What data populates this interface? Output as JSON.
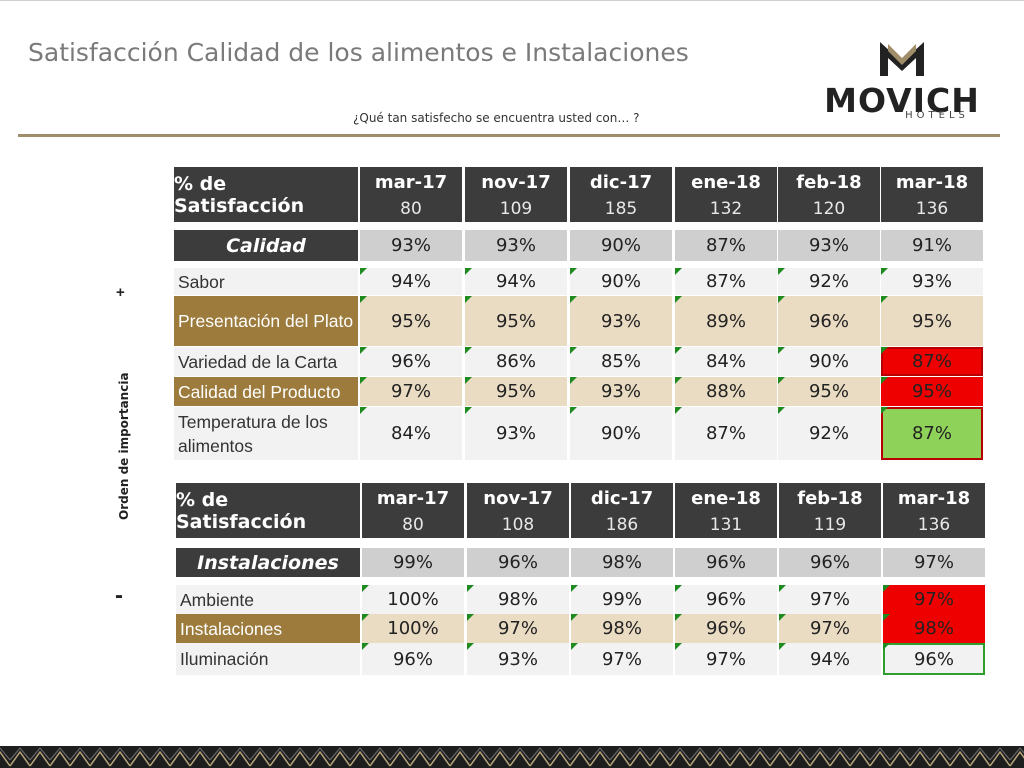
{
  "title": "Satisfacción Calidad de los alimentos e Instalaciones",
  "subtitle": "¿Qué tan satisfecho se encuentra usted con… ?",
  "logo": {
    "word": "MOVICH",
    "sub": "HOTELS"
  },
  "side": {
    "plus": "+",
    "minus": "-",
    "label": "Orden de importancia"
  },
  "colors": {
    "gold_rule": "#a08e6a",
    "header_dark": "#3c3c3c",
    "tan": "#eadbc3",
    "brown": "#9c7b3c",
    "alert_red": "#ee0000",
    "good_green": "#8fd25a",
    "flag_green": "#1f8a1f"
  },
  "table1": {
    "header_label": "% de Satisfacción",
    "columns": [
      {
        "month": "mar-17",
        "n": "80"
      },
      {
        "month": "nov-17",
        "n": "109"
      },
      {
        "month": "dic-17",
        "n": "185"
      },
      {
        "month": "ene-18",
        "n": "132"
      },
      {
        "month": "feb-18",
        "n": "120"
      },
      {
        "month": "mar-18",
        "n": "136"
      }
    ],
    "category": {
      "label": "Calidad",
      "values": [
        "93%",
        "93%",
        "90%",
        "87%",
        "93%",
        "91%"
      ]
    },
    "rows": [
      {
        "label": "Sabor",
        "values": [
          "94%",
          "94%",
          "90%",
          "87%",
          "92%",
          "93%"
        ]
      },
      {
        "label": "Presentación del Plato",
        "values": [
          "95%",
          "95%",
          "93%",
          "89%",
          "96%",
          "95%"
        ]
      },
      {
        "label": "Variedad de la Carta",
        "values": [
          "96%",
          "86%",
          "85%",
          "84%",
          "90%",
          "87%"
        ]
      },
      {
        "label": "Calidad del Producto",
        "values": [
          "97%",
          "95%",
          "93%",
          "88%",
          "95%",
          "95%"
        ]
      },
      {
        "label": "Temperatura de los alimentos",
        "values": [
          "84%",
          "93%",
          "90%",
          "87%",
          "92%",
          "87%"
        ]
      }
    ]
  },
  "table2": {
    "header_label": "% de Satisfacción",
    "columns": [
      {
        "month": "mar-17",
        "n": "80"
      },
      {
        "month": "nov-17",
        "n": "108"
      },
      {
        "month": "dic-17",
        "n": "186"
      },
      {
        "month": "ene-18",
        "n": "131"
      },
      {
        "month": "feb-18",
        "n": "119"
      },
      {
        "month": "mar-18",
        "n": "136"
      }
    ],
    "category": {
      "label": "Instalaciones",
      "values": [
        "99%",
        "96%",
        "98%",
        "96%",
        "96%",
        "97%"
      ]
    },
    "rows": [
      {
        "label": "Ambiente",
        "values": [
          "100%",
          "98%",
          "99%",
          "96%",
          "97%",
          "97%"
        ]
      },
      {
        "label": "Instalaciones",
        "values": [
          "100%",
          "97%",
          "98%",
          "96%",
          "97%",
          "98%"
        ]
      },
      {
        "label": "Iluminación",
        "values": [
          "96%",
          "93%",
          "97%",
          "97%",
          "94%",
          "96%"
        ]
      }
    ]
  }
}
